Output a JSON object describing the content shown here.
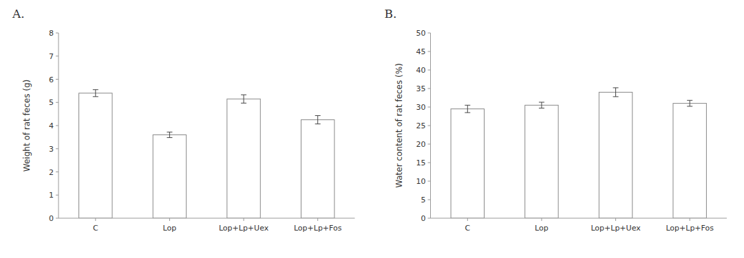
{
  "chart_data": [
    {
      "type": "bar",
      "title": "A.",
      "categories": [
        "C",
        "Lop",
        "Lop+Lp+Uex",
        "Lop+Lp+Fos"
      ],
      "values": [
        5.4,
        3.6,
        5.15,
        4.25
      ],
      "errors": [
        0.15,
        0.12,
        0.18,
        0.18
      ],
      "ylabel": "Weight of rat feces (g)",
      "ylim": [
        0,
        8
      ],
      "yticks": [
        0,
        1,
        2,
        3,
        4,
        5,
        6,
        7,
        8
      ],
      "color": "#ffffff",
      "grid": false
    },
    {
      "type": "bar",
      "title": "B.",
      "categories": [
        "C",
        "Lop",
        "Lop+Lp+Uex",
        "Lop+Lp+Fos"
      ],
      "values": [
        29.5,
        30.5,
        34.0,
        31.0
      ],
      "errors": [
        1.0,
        0.8,
        1.2,
        0.8
      ],
      "ylabel": "Water content of rat feces (%)",
      "ylim": [
        0,
        50
      ],
      "yticks": [
        0,
        5,
        10,
        15,
        20,
        25,
        30,
        35,
        40,
        45,
        50
      ],
      "color": "#ffffff",
      "grid": false
    }
  ]
}
